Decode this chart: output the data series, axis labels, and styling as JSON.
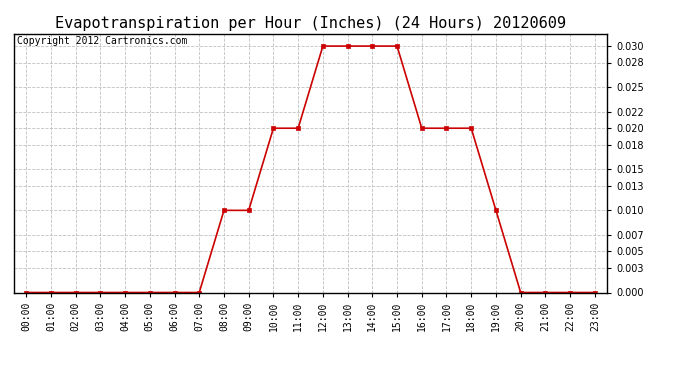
{
  "title": "Evapotranspiration per Hour (Inches) (24 Hours) 20120609",
  "copyright": "Copyright 2012 Cartronics.com",
  "hours": [
    0,
    1,
    2,
    3,
    4,
    5,
    6,
    7,
    8,
    9,
    10,
    11,
    12,
    13,
    14,
    15,
    16,
    17,
    18,
    19,
    20,
    21,
    22,
    23
  ],
  "values": [
    0.0,
    0.0,
    0.0,
    0.0,
    0.0,
    0.0,
    0.0,
    0.0,
    0.01,
    0.01,
    0.02,
    0.02,
    0.03,
    0.03,
    0.03,
    0.03,
    0.02,
    0.02,
    0.02,
    0.01,
    0.0,
    0.0,
    0.0,
    0.0
  ],
  "line_color": "#cc0000",
  "marker": "s",
  "marker_size": 3,
  "bg_color": "#ffffff",
  "grid_color": "#c0c0c0",
  "ylim": [
    0.0,
    0.0315
  ],
  "yticks": [
    0.0,
    0.003,
    0.005,
    0.007,
    0.01,
    0.013,
    0.015,
    0.018,
    0.02,
    0.022,
    0.025,
    0.028,
    0.03
  ],
  "title_fontsize": 11,
  "copyright_fontsize": 7,
  "tick_fontsize": 7
}
